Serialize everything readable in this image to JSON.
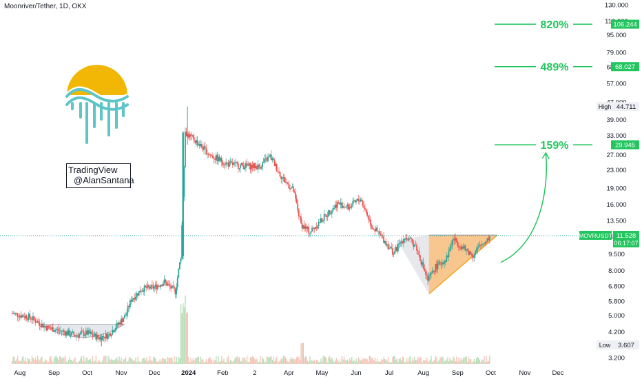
{
  "header": {
    "title": "Moonriver/Tether, 1D, OKX"
  },
  "signature": {
    "line1": "TradingView",
    "line2": "@AlanSantana"
  },
  "colors": {
    "up": "#26a69a",
    "down": "#ef5350",
    "target": "#22c55e",
    "triangle": "#f5a623",
    "axis_text": "#131722"
  },
  "chart_data": {
    "type": "candlestick",
    "symbol": "MOVRUSDT",
    "y_scale": "log",
    "ylim": [
      3.0,
      135.0
    ],
    "y_ticks": [
      "130.000",
      "110.000",
      "95.000",
      "79.000",
      "68.000",
      "57.000",
      "47.000",
      "39.000",
      "33.000",
      "27.000",
      "23.000",
      "19.000",
      "16.000",
      "13.500",
      "11.500",
      "9.500",
      "8.000",
      "6.800",
      "5.800",
      "5.000",
      "4.200",
      "3.600",
      "3.200"
    ],
    "x_ticks": [
      "Aug",
      "Sep",
      "Oct",
      "Nov",
      "Dec",
      "2024",
      "Feb",
      "2",
      "Apr",
      "May",
      "Jun",
      "Jul",
      "Aug",
      "Sep",
      "Oct",
      "Nov",
      "Dec"
    ],
    "price_series": [
      [
        "2023-07-25",
        5.1
      ],
      [
        "2023-08-10",
        4.9
      ],
      [
        "2023-08-25",
        4.4
      ],
      [
        "2023-09-10",
        4.2
      ],
      [
        "2023-09-20",
        4.05
      ],
      [
        "2023-10-01",
        4.15
      ],
      [
        "2023-10-12",
        3.95
      ],
      [
        "2023-10-20",
        4.05
      ],
      [
        "2023-10-30",
        4.6
      ],
      [
        "2023-11-05",
        5.0
      ],
      [
        "2023-11-10",
        5.9
      ],
      [
        "2023-11-20",
        6.6
      ],
      [
        "2023-12-01",
        6.7
      ],
      [
        "2023-12-10",
        7.1
      ],
      [
        "2023-12-20",
        6.4
      ],
      [
        "2023-12-25",
        9.3
      ],
      [
        "2023-12-29",
        34.0
      ],
      [
        "2024-01-08",
        31.0
      ],
      [
        "2024-01-20",
        27.0
      ],
      [
        "2024-02-05",
        24.5
      ],
      [
        "2024-02-20",
        24.0
      ],
      [
        "2024-03-05",
        23.8
      ],
      [
        "2024-03-15",
        26.5
      ],
      [
        "2024-03-25",
        21.5
      ],
      [
        "2024-04-05",
        18.5
      ],
      [
        "2024-04-12",
        13.0
      ],
      [
        "2024-04-20",
        12.0
      ],
      [
        "2024-04-30",
        13.5
      ],
      [
        "2024-05-15",
        16.2
      ],
      [
        "2024-05-25",
        15.5
      ],
      [
        "2024-06-05",
        17.0
      ],
      [
        "2024-06-15",
        12.8
      ],
      [
        "2024-06-25",
        11.2
      ],
      [
        "2024-07-05",
        9.6
      ],
      [
        "2024-07-15",
        11.4
      ],
      [
        "2024-07-25",
        10.4
      ],
      [
        "2024-08-05",
        7.2
      ],
      [
        "2024-08-12",
        8.3
      ],
      [
        "2024-08-22",
        9.1
      ],
      [
        "2024-08-28",
        11.2
      ],
      [
        "2024-09-05",
        10.2
      ],
      [
        "2024-09-15",
        9.4
      ],
      [
        "2024-09-22",
        10.4
      ],
      [
        "2024-10-01",
        11.528
      ]
    ],
    "current": {
      "symbol_label": "MOVRUSDT",
      "price": "11.528",
      "countdown": "06:17:07"
    },
    "high": {
      "label": "High",
      "value": "44.711",
      "price": 44.711
    },
    "low": {
      "label": "Low",
      "value": "3.607",
      "price": 3.607
    },
    "targets": [
      {
        "percent": "820%",
        "price": "106.244",
        "value": 106.244
      },
      {
        "percent": "489%",
        "price": "68.027",
        "value": 68.027
      },
      {
        "percent": "159%",
        "price": "29.945",
        "value": 29.945
      }
    ],
    "annotations": [
      "rounded bottom (cup) Sep–Oct 2023",
      "ascending triangle Aug–Oct 2024",
      "projected breakout arrow"
    ]
  }
}
